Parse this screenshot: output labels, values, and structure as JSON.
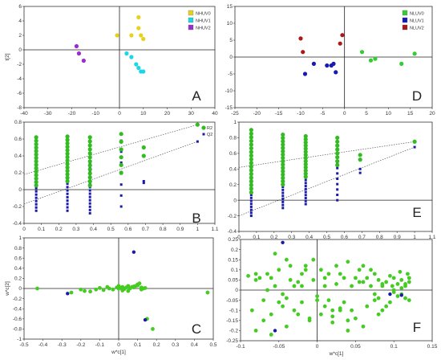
{
  "colors": {
    "nhuv0": "#e6d21a",
    "nhuv1": "#1ad6e6",
    "nhuv2": "#9b2bd6",
    "nluv0": "#33cc33",
    "nluv1": "#1a1ab3",
    "nluv2": "#a81a1a",
    "r2": "#33bb22",
    "q2": "#1a1aa8",
    "green": "#44cc22",
    "blue": "#1a1aa8"
  },
  "chart_data": [
    {
      "panel": "A",
      "type": "scatter",
      "xlim": [
        -40,
        40
      ],
      "ylim": [
        -8,
        6
      ],
      "xticks": [
        "-40",
        "-30",
        "-20",
        "-10",
        "0",
        "10",
        "20",
        "30",
        "40"
      ],
      "yticks": [
        "6",
        "4",
        "2",
        "0",
        "-2",
        "-4",
        "-6",
        "-8"
      ],
      "ylabel": "t[2]",
      "xlabel": "",
      "legend": [
        "NHUV0",
        "NHUV1",
        "NHUV2"
      ],
      "series": [
        {
          "name": "NHUV0",
          "color_key": "nhuv0",
          "x": [
            -1,
            5,
            8,
            8,
            9,
            10
          ],
          "y": [
            2,
            2,
            3,
            4.5,
            2,
            1.5
          ]
        },
        {
          "name": "NHUV1",
          "color_key": "nhuv1",
          "x": [
            3,
            5,
            7,
            8,
            9,
            10
          ],
          "y": [
            -0.5,
            -1,
            -2,
            -2.5,
            -3,
            -3
          ]
        },
        {
          "name": "NHUV2",
          "color_key": "nhuv2",
          "x": [
            -18,
            -17,
            -15
          ],
          "y": [
            0.5,
            -0.5,
            -1.5
          ]
        }
      ]
    },
    {
      "panel": "D",
      "type": "scatter",
      "xlim": [
        -25,
        20
      ],
      "ylim": [
        -15,
        15
      ],
      "xticks": [
        "-25",
        "-20",
        "-15",
        "-10",
        "-5",
        "0",
        "5",
        "10",
        "15",
        "20"
      ],
      "yticks": [
        "15",
        "10",
        "5",
        "0",
        "-5",
        "-10",
        "-15"
      ],
      "ylabel": "",
      "xlabel": "",
      "legend": [
        "NLUV0",
        "NLUV1",
        "NLUV2"
      ],
      "series": [
        {
          "name": "NLUV0",
          "color_key": "nluv0",
          "x": [
            4,
            6,
            7,
            13,
            16
          ],
          "y": [
            1.5,
            -1,
            -0.5,
            -2,
            1
          ]
        },
        {
          "name": "NLUV1",
          "color_key": "nluv1",
          "x": [
            -9,
            -7,
            -4,
            -3,
            -2.5,
            -2
          ],
          "y": [
            -5,
            -2,
            -2.5,
            -2.5,
            -2,
            -4.5
          ]
        },
        {
          "name": "NLUV2",
          "color_key": "nluv2",
          "x": [
            -10,
            -9.5,
            -1,
            -0.5
          ],
          "y": [
            5.5,
            1.5,
            4,
            6.5
          ]
        }
      ]
    },
    {
      "panel": "B",
      "type": "scatter",
      "xlim": [
        0,
        1.1
      ],
      "ylim": [
        -0.4,
        0.8
      ],
      "xticks": [
        "0",
        "0.1",
        "0.2",
        "0.3",
        "0.4",
        "0.5",
        "0.6",
        "0.7",
        "0.8",
        "0.9",
        "1",
        "1.1"
      ],
      "yticks": [
        "0.8",
        "0.6",
        "0.4",
        "0.2",
        "0",
        "-0.2",
        "-0.4"
      ],
      "ylabel": "",
      "xlabel": "",
      "legend": [
        "R2",
        "Q2"
      ],
      "r2_columns": [
        {
          "x": 0.07,
          "ymin": 0.05,
          "ymax": 0.62,
          "n": 15
        },
        {
          "x": 0.25,
          "ymin": 0.1,
          "ymax": 0.63,
          "n": 14
        },
        {
          "x": 0.38,
          "ymin": 0.05,
          "ymax": 0.62,
          "n": 13
        },
        {
          "x": 0.56,
          "ymin": 0.2,
          "ymax": 0.66,
          "n": 6
        },
        {
          "x": 0.69,
          "ymin": 0.4,
          "ymax": 0.5,
          "n": 2
        },
        {
          "x": 1.0,
          "ymin": 0.77,
          "ymax": 0.77,
          "n": 1
        }
      ],
      "q2_columns": [
        {
          "x": 0.07,
          "ymin": -0.25,
          "ymax": 0.4,
          "n": 18
        },
        {
          "x": 0.25,
          "ymin": -0.25,
          "ymax": 0.35,
          "n": 16
        },
        {
          "x": 0.38,
          "ymin": -0.28,
          "ymax": 0.3,
          "n": 16
        },
        {
          "x": 0.56,
          "ymin": -0.2,
          "ymax": 0.58,
          "n": 7
        },
        {
          "x": 0.69,
          "ymin": 0.08,
          "ymax": 0.1,
          "n": 2
        },
        {
          "x": 1.0,
          "ymin": 0.57,
          "ymax": 0.57,
          "n": 1
        }
      ],
      "r2_line": [
        [
          0,
          0.18
        ],
        [
          1.0,
          0.77
        ]
      ],
      "q2_line": [
        [
          0,
          -0.17
        ],
        [
          1.0,
          0.57
        ]
      ]
    },
    {
      "panel": "E",
      "type": "scatter",
      "xlim": [
        0,
        1.1
      ],
      "ylim": [
        -0.4,
        1.0
      ],
      "xticks": [
        "0",
        "0.1",
        "0.2",
        "0.3",
        "0.4",
        "0.5",
        "0.6",
        "0.7",
        "0.8",
        "0.9",
        "1",
        "1.1"
      ],
      "yticks": [
        "1",
        "0.8",
        "0.6",
        "0.4",
        "0.2",
        "0",
        "-0.2",
        "-0.4"
      ],
      "ylabel": "",
      "xlabel": "",
      "r2_columns": [
        {
          "x": 0.07,
          "ymin": 0.1,
          "ymax": 0.9,
          "n": 18
        },
        {
          "x": 0.25,
          "ymin": 0.2,
          "ymax": 0.84,
          "n": 16
        },
        {
          "x": 0.38,
          "ymin": 0.3,
          "ymax": 0.82,
          "n": 14
        },
        {
          "x": 0.56,
          "ymin": 0.45,
          "ymax": 0.8,
          "n": 8
        },
        {
          "x": 0.69,
          "ymin": 0.52,
          "ymax": 0.58,
          "n": 2
        },
        {
          "x": 1.0,
          "ymin": 0.75,
          "ymax": 0.75,
          "n": 1
        }
      ],
      "q2_columns": [
        {
          "x": 0.07,
          "ymin": -0.2,
          "ymax": 0.45,
          "n": 18
        },
        {
          "x": 0.25,
          "ymin": -0.1,
          "ymax": 0.48,
          "n": 16
        },
        {
          "x": 0.38,
          "ymin": -0.05,
          "ymax": 0.45,
          "n": 14
        },
        {
          "x": 0.56,
          "ymin": 0.0,
          "ymax": 0.48,
          "n": 8
        },
        {
          "x": 0.69,
          "ymin": 0.35,
          "ymax": 0.4,
          "n": 2
        },
        {
          "x": 1.0,
          "ymin": 0.68,
          "ymax": 0.68,
          "n": 1
        }
      ],
      "r2_line": [
        [
          0,
          0.42
        ],
        [
          1.0,
          0.75
        ]
      ],
      "q2_line": [
        [
          0,
          -0.2
        ],
        [
          1.0,
          0.68
        ]
      ]
    },
    {
      "panel": "C",
      "type": "scatter",
      "xlim": [
        -0.5,
        0.5
      ],
      "ylim": [
        -1,
        1
      ],
      "xticks": [
        "-0.5",
        "-0.4",
        "-0.3",
        "-0.2",
        "-0.1",
        "0",
        "0.1",
        "0.2",
        "0.3",
        "0.4",
        "0.5"
      ],
      "yticks": [
        "1",
        "0.8",
        "0.6",
        "0.4",
        "0.2",
        "0",
        "-0.2",
        "-0.4",
        "-0.6",
        "-0.8",
        "-1"
      ],
      "ylabel": "w*c[2]",
      "xlabel": "w*c[1]",
      "green": {
        "x": [
          -0.43,
          -0.25,
          -0.2,
          -0.18,
          -0.12,
          -0.08,
          -0.05,
          -0.03,
          -0.01,
          0.0,
          0.01,
          0.02,
          0.03,
          0.04,
          0.05,
          0.06,
          0.07,
          0.08,
          0.09,
          0.1,
          0.11,
          0.12,
          0.13,
          0.15,
          0.18,
          0.47,
          0.02,
          0.05,
          0.08,
          0.1,
          -0.1,
          -0.15,
          0.12,
          0.14,
          -0.06,
          0.0
        ],
        "y": [
          0.0,
          -0.08,
          -0.02,
          -0.05,
          -0.02,
          -0.03,
          0.0,
          -0.02,
          0.02,
          0.0,
          0.01,
          0.03,
          -0.01,
          0.02,
          0.05,
          0.0,
          0.03,
          0.02,
          0.05,
          0.08,
          0.1,
          0.02,
          0.0,
          -0.6,
          -0.8,
          -0.08,
          -0.04,
          -0.05,
          0.04,
          0.06,
          0.01,
          -0.06,
          -0.02,
          0.01,
          0.03,
          0.05
        ]
      },
      "blue": {
        "x": [
          -0.27,
          0.08,
          0.14
        ],
        "y": [
          -0.1,
          0.72,
          -0.62
        ]
      }
    },
    {
      "panel": "F",
      "type": "scatter",
      "xlim": [
        -0.1,
        0.15
      ],
      "ylim": [
        -0.25,
        0.25
      ],
      "xticks": [
        "-0.1",
        "-0.05",
        "0",
        "0.05",
        "0.1",
        "0.15"
      ],
      "yticks": [
        "0.25",
        "0.2",
        "0.15",
        "0.1",
        "0.05",
        "0",
        "-0.05",
        "-0.1",
        "-0.15",
        "-0.2",
        "-0.25"
      ],
      "ylabel": "",
      "xlabel": "w*c[1]",
      "green": {
        "x": [
          -0.09,
          -0.085,
          -0.08,
          -0.075,
          -0.07,
          -0.065,
          -0.06,
          -0.055,
          -0.05,
          -0.045,
          -0.04,
          -0.035,
          -0.03,
          -0.025,
          -0.02,
          -0.015,
          -0.01,
          -0.005,
          0.0,
          0.005,
          0.01,
          0.015,
          0.02,
          0.025,
          0.03,
          0.035,
          0.04,
          0.045,
          0.05,
          0.055,
          0.06,
          0.065,
          0.07,
          0.075,
          0.08,
          0.085,
          0.09,
          0.095,
          0.1,
          0.105,
          0.11,
          0.115,
          0.12,
          0.1,
          0.11,
          0.115,
          0.12,
          0.095,
          0.105,
          0.09,
          0.085,
          0.08,
          0.075,
          0.06,
          0.05,
          0.04,
          0.03,
          0.02,
          0.01,
          -0.01,
          -0.02,
          -0.03,
          -0.04,
          -0.05,
          -0.06,
          -0.07,
          -0.08,
          -0.065,
          -0.055,
          -0.045,
          -0.035,
          -0.025,
          -0.015,
          -0.005,
          0.005,
          0.015,
          0.025,
          0.035,
          0.045,
          0.055,
          0.065,
          0.075,
          0.085,
          0.1,
          0.11,
          0.115,
          0.12,
          0.118,
          0.108,
          0.098,
          -0.02,
          0.0,
          0.01,
          0.03,
          0.06,
          0.07,
          0.08,
          -0.04,
          -0.06,
          -0.08,
          0.02,
          0.04
        ],
        "y": [
          0.07,
          -0.1,
          0.05,
          0.06,
          -0.05,
          0.08,
          0.06,
          0.18,
          0.1,
          -0.08,
          0.15,
          0.05,
          0.02,
          -0.12,
          0.08,
          0.12,
          -0.15,
          0.05,
          -0.03,
          0.1,
          0.02,
          -0.05,
          -0.1,
          0.12,
          0.08,
          0.06,
          0.14,
          0.02,
          0.06,
          0.1,
          0.04,
          0.06,
          0.02,
          0.08,
          0.05,
          0.03,
          0.04,
          0.07,
          0.06,
          0.03,
          0.05,
          0.02,
          0.04,
          0.0,
          -0.02,
          -0.04,
          -0.05,
          -0.06,
          -0.03,
          -0.08,
          -0.1,
          -0.12,
          -0.05,
          -0.18,
          -0.14,
          -0.2,
          -0.1,
          -0.16,
          -0.08,
          -0.14,
          -0.06,
          -0.1,
          -0.04,
          -0.06,
          -0.12,
          -0.15,
          -0.2,
          0.0,
          0.02,
          -0.02,
          0.12,
          0.04,
          0.1,
          0.15,
          -0.12,
          0.08,
          0.03,
          -0.06,
          -0.1,
          0.04,
          -0.08,
          -0.02,
          0.02,
          -0.01,
          0.01,
          0.03,
          0.06,
          0.08,
          0.09,
          0.02,
          0.02,
          -0.05,
          0.06,
          -0.09,
          0.12,
          0.1,
          -0.04,
          -0.18,
          -0.22,
          0.08,
          -0.13,
          -0.15
        ]
      },
      "blue": {
        "x": [
          -0.045,
          -0.055,
          0.095,
          0.11
        ],
        "y": [
          0.235,
          -0.2,
          -0.02,
          -0.025
        ]
      }
    }
  ]
}
